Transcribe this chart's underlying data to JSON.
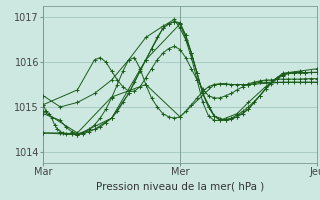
{
  "xlabel": "Pression niveau de la mer( hPa )",
  "bg_color": "#cce8e0",
  "grid_color": "#aaccc4",
  "line_color": "#1a5c1a",
  "ylim": [
    1013.75,
    1017.25
  ],
  "xlim": [
    0,
    48
  ],
  "xticks": [
    0,
    24,
    48
  ],
  "xticklabels": [
    "Mar",
    "Mer",
    "Jeu"
  ],
  "yticks": [
    1014,
    1015,
    1016,
    1017
  ],
  "series": [
    [
      0.0,
      1015.05,
      0.5,
      1014.9,
      1.0,
      1014.85,
      1.5,
      1014.75,
      2.0,
      1014.6,
      2.5,
      1014.5,
      3.0,
      1014.45,
      3.5,
      1014.42,
      4.0,
      1014.4,
      5.0,
      1014.4,
      6.0,
      1014.38,
      7.0,
      1014.4,
      8.0,
      1014.45,
      9.0,
      1014.5,
      10.0,
      1014.55,
      11.0,
      1014.65,
      12.0,
      1014.75,
      13.0,
      1014.9,
      14.0,
      1015.1,
      15.0,
      1015.3,
      16.0,
      1015.55,
      17.0,
      1015.8,
      18.0,
      1016.05,
      19.0,
      1016.3,
      20.0,
      1016.55,
      21.0,
      1016.75,
      22.0,
      1016.85,
      23.0,
      1016.9,
      24.0,
      1016.85,
      25.0,
      1016.6,
      26.0,
      1016.2,
      27.0,
      1015.75,
      28.0,
      1015.3,
      29.0,
      1015.0,
      30.0,
      1014.8,
      31.0,
      1014.7,
      32.0,
      1014.7,
      33.0,
      1014.72,
      34.0,
      1014.78,
      35.0,
      1014.85,
      36.0,
      1014.95,
      37.0,
      1015.1,
      38.0,
      1015.25,
      39.0,
      1015.4,
      40.0,
      1015.55,
      41.0,
      1015.65,
      42.0,
      1015.72,
      43.0,
      1015.75,
      44.0,
      1015.76,
      45.0,
      1015.76,
      46.0,
      1015.76,
      47.0,
      1015.77,
      48.0,
      1015.77
    ],
    [
      0.0,
      1015.25,
      3.0,
      1015.0,
      6.0,
      1015.1,
      9.0,
      1015.3,
      12.0,
      1015.6,
      15.0,
      1016.05,
      18.0,
      1016.55,
      21.0,
      1016.8,
      23.0,
      1016.95,
      24.0,
      1016.75,
      25.0,
      1016.5,
      26.0,
      1016.1,
      27.0,
      1015.6,
      28.0,
      1015.1,
      29.0,
      1014.8,
      30.0,
      1014.7,
      31.0,
      1014.7,
      34.0,
      1014.85,
      36.0,
      1015.1,
      39.0,
      1015.45,
      42.0,
      1015.75,
      45.0,
      1015.8,
      48.0,
      1015.85
    ],
    [
      0.0,
      1014.85,
      3.0,
      1014.7,
      4.0,
      1014.55,
      5.0,
      1014.45,
      6.0,
      1014.4,
      7.0,
      1014.42,
      8.0,
      1014.5,
      9.0,
      1014.6,
      10.0,
      1014.75,
      11.0,
      1014.95,
      12.0,
      1015.2,
      13.0,
      1015.5,
      14.0,
      1015.8,
      15.0,
      1016.05,
      16.0,
      1016.1,
      17.0,
      1015.85,
      18.0,
      1015.5,
      19.0,
      1015.2,
      20.0,
      1015.0,
      21.0,
      1014.85,
      22.0,
      1014.78,
      23.0,
      1014.75,
      24.0,
      1014.78,
      25.0,
      1014.9,
      26.0,
      1015.05,
      27.0,
      1015.2,
      28.0,
      1015.35,
      29.0,
      1015.45,
      30.0,
      1015.5,
      31.0,
      1015.52,
      32.0,
      1015.52,
      33.0,
      1015.5,
      34.0,
      1015.5,
      35.0,
      1015.5,
      36.0,
      1015.5,
      37.0,
      1015.52,
      38.0,
      1015.55,
      39.0,
      1015.55,
      40.0,
      1015.55,
      41.0,
      1015.55,
      42.0,
      1015.55,
      43.0,
      1015.55,
      44.0,
      1015.55,
      45.0,
      1015.55,
      46.0,
      1015.55,
      47.0,
      1015.55,
      48.0,
      1015.55
    ],
    [
      0.0,
      1014.9,
      6.0,
      1014.42,
      12.0,
      1015.22,
      18.0,
      1015.5,
      24.0,
      1014.78,
      30.0,
      1015.5,
      36.0,
      1015.5,
      42.0,
      1015.55,
      48.0,
      1015.55
    ],
    [
      0.0,
      1014.42,
      6.0,
      1014.38,
      12.0,
      1014.75,
      18.0,
      1016.05,
      24.0,
      1016.85,
      26.0,
      1016.2,
      28.0,
      1015.3,
      30.0,
      1014.8,
      32.0,
      1014.7,
      34.0,
      1014.78,
      36.0,
      1014.95,
      38.0,
      1015.25,
      40.0,
      1015.55,
      42.0,
      1015.72,
      44.0,
      1015.76,
      46.0,
      1015.76,
      48.0,
      1015.77
    ],
    [
      0.0,
      1015.05,
      6.0,
      1015.38,
      9.0,
      1016.05,
      10.0,
      1016.1,
      11.0,
      1016.0,
      12.0,
      1015.8,
      13.0,
      1015.6,
      14.0,
      1015.45,
      15.0,
      1015.35,
      16.0,
      1015.35,
      17.0,
      1015.45,
      18.0,
      1015.65,
      19.0,
      1015.85,
      20.0,
      1016.05,
      21.0,
      1016.2,
      22.0,
      1016.3,
      23.0,
      1016.35,
      24.0,
      1016.28,
      25.0,
      1016.1,
      26.0,
      1015.85,
      27.0,
      1015.6,
      28.0,
      1015.4,
      29.0,
      1015.25,
      30.0,
      1015.2,
      31.0,
      1015.2,
      32.0,
      1015.25,
      33.0,
      1015.3,
      34.0,
      1015.38,
      35.0,
      1015.45,
      36.0,
      1015.52,
      37.0,
      1015.55,
      38.0,
      1015.58,
      39.0,
      1015.6,
      40.0,
      1015.6,
      41.0,
      1015.62,
      42.0,
      1015.62,
      43.0,
      1015.62,
      44.0,
      1015.62,
      45.0,
      1015.62,
      46.0,
      1015.63,
      47.0,
      1015.63,
      48.0,
      1015.63
    ],
    [
      0.0,
      1014.42,
      3.0,
      1014.42,
      6.0,
      1014.4,
      9.0,
      1014.5,
      12.0,
      1014.75,
      15.0,
      1015.3,
      18.0,
      1016.05,
      21.0,
      1016.75,
      22.0,
      1016.85,
      23.0,
      1016.9,
      24.0,
      1016.88,
      25.0,
      1016.6,
      26.0,
      1016.2,
      27.0,
      1015.75,
      28.0,
      1015.3,
      29.0,
      1015.0,
      30.0,
      1014.8,
      31.0,
      1014.72,
      32.0,
      1014.72,
      33.0,
      1014.75,
      34.0,
      1014.82,
      35.0,
      1014.9,
      36.0,
      1015.0,
      37.0,
      1015.12,
      38.0,
      1015.25,
      39.0,
      1015.4,
      40.0,
      1015.52,
      41.0,
      1015.62,
      42.0,
      1015.7,
      43.0,
      1015.75,
      44.0,
      1015.76,
      45.0,
      1015.77,
      46.0,
      1015.77,
      47.0,
      1015.77,
      48.0,
      1015.77
    ]
  ]
}
